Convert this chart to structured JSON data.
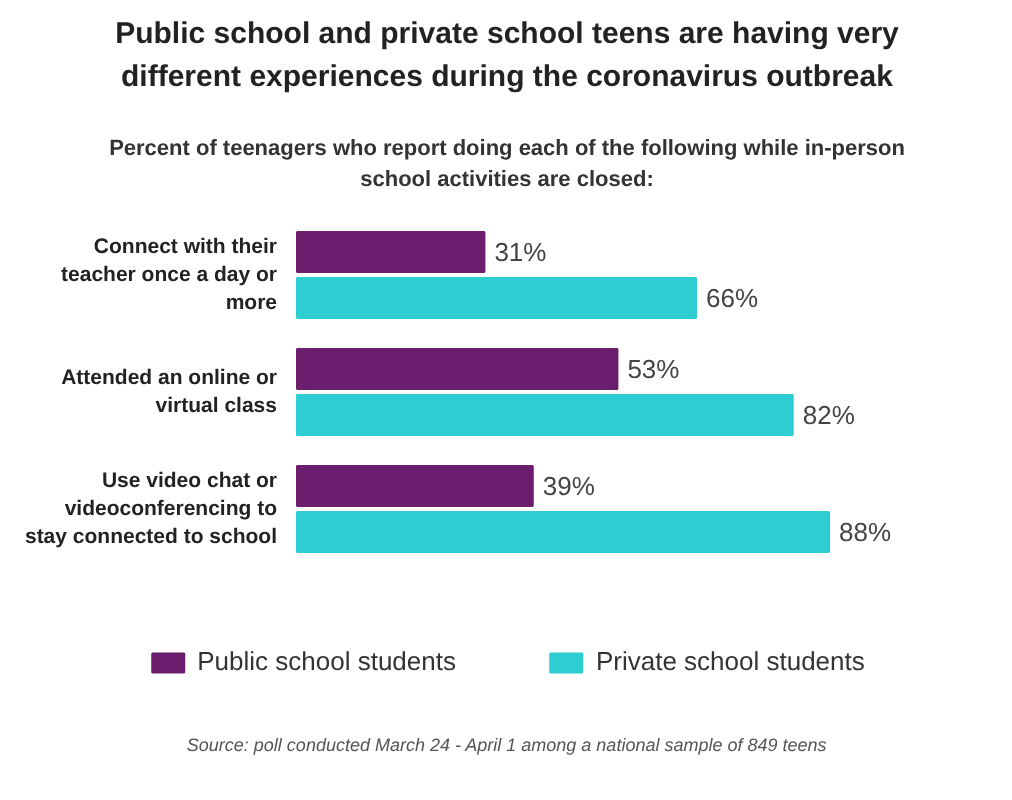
{
  "chart_data": {
    "type": "bar",
    "orientation": "horizontal",
    "title": "Public school and private school teens are having very different experiences during the coronavirus outbreak",
    "subtitle": "Percent of teenagers who report doing each of the following while in-person school activities are closed:",
    "categories": [
      "Connect with their teacher once a day or more",
      "Attended an online or virtual class",
      "Use video chat or videoconferencing to stay connected to school"
    ],
    "series": [
      {
        "name": "Public school students",
        "color": "#6b1d6e",
        "values": [
          31,
          53,
          39
        ],
        "value_labels": [
          "31%",
          "53%",
          "39%"
        ]
      },
      {
        "name": "Private school students",
        "color": "#2ecdd2",
        "values": [
          66,
          82,
          88
        ],
        "value_labels": [
          "66%",
          "82%",
          "88%"
        ]
      }
    ],
    "legend": "bottom",
    "grid": false,
    "annotations": [
      "Source: poll conducted March 24 - April 1 among a national sample of 849 teens"
    ]
  }
}
